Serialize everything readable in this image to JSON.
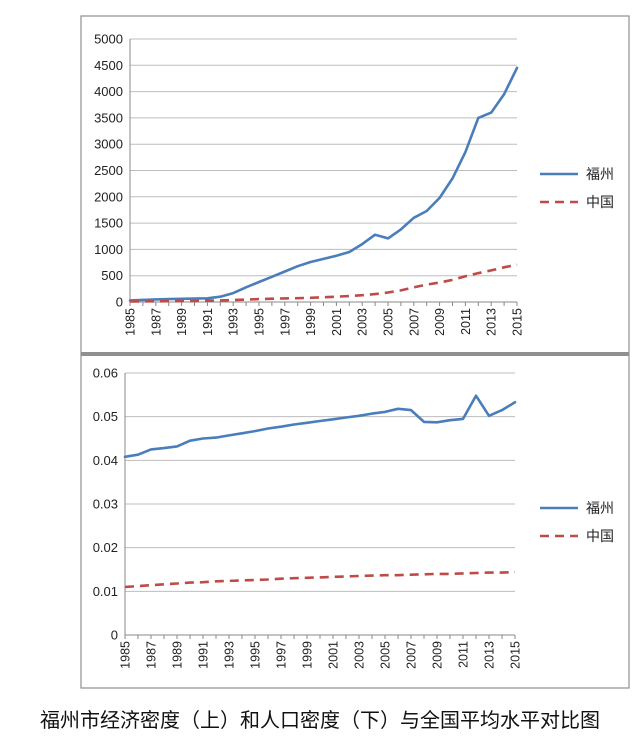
{
  "caption": "福州市经济密度（上）和人口密度（下）与全国平均水平对比图",
  "colors": {
    "fuzhou": "#4a7ebb",
    "china": "#be4b48"
  },
  "chart_data": [
    {
      "type": "line",
      "title": "",
      "xlabel": "",
      "ylabel": "",
      "ylim": [
        0,
        5000
      ],
      "yticks": [
        0,
        500,
        1000,
        1500,
        2000,
        2500,
        3000,
        3500,
        4000,
        4500,
        5000
      ],
      "x": [
        1985,
        1986,
        1987,
        1988,
        1989,
        1990,
        1991,
        1992,
        1993,
        1994,
        1995,
        1996,
        1997,
        1998,
        1999,
        2000,
        2001,
        2002,
        2003,
        2004,
        2005,
        2006,
        2007,
        2008,
        2009,
        2010,
        2011,
        2012,
        2013,
        2014,
        2015
      ],
      "xtick_labels": [
        "1985",
        "1987",
        "1989",
        "1991",
        "1993",
        "1995",
        "1997",
        "1999",
        "2001",
        "2003",
        "2005",
        "2007",
        "2009",
        "2011",
        "2013",
        "2015"
      ],
      "grid": "horizontal",
      "legend_position": "right",
      "series": [
        {
          "name": "福州",
          "style": "solid",
          "values": [
            30,
            40,
            50,
            55,
            60,
            65,
            70,
            100,
            170,
            280,
            380,
            480,
            580,
            680,
            760,
            820,
            880,
            950,
            1100,
            1280,
            1210,
            1380,
            1600,
            1730,
            1980,
            2350,
            2850,
            3500,
            3600,
            3950,
            4450
          ]
        },
        {
          "name": "中国",
          "style": "dashed",
          "values": [
            10,
            12,
            14,
            16,
            18,
            20,
            25,
            30,
            38,
            45,
            55,
            62,
            68,
            72,
            80,
            90,
            100,
            115,
            130,
            150,
            180,
            220,
            280,
            330,
            370,
            420,
            490,
            550,
            600,
            660,
            710
          ]
        }
      ]
    },
    {
      "type": "line",
      "title": "",
      "xlabel": "",
      "ylabel": "",
      "ylim": [
        0,
        0.06
      ],
      "yticks": [
        0,
        0.01,
        0.02,
        0.03,
        0.04,
        0.05,
        0.06
      ],
      "ytick_labels": [
        "0",
        "0.01",
        "0.02",
        "0.03",
        "0.04",
        "0.05",
        "0.06"
      ],
      "x": [
        1985,
        1986,
        1987,
        1988,
        1989,
        1990,
        1991,
        1992,
        1993,
        1994,
        1995,
        1996,
        1997,
        1998,
        1999,
        2000,
        2001,
        2002,
        2003,
        2004,
        2005,
        2006,
        2007,
        2008,
        2009,
        2010,
        2011,
        2012,
        2013,
        2014,
        2015
      ],
      "xtick_labels": [
        "1985",
        "1987",
        "1989",
        "1991",
        "1993",
        "1995",
        "1997",
        "1999",
        "2001",
        "2003",
        "2005",
        "2007",
        "2009",
        "2011",
        "2013",
        "2015"
      ],
      "grid": "horizontal",
      "legend_position": "right",
      "series": [
        {
          "name": "福州",
          "style": "solid",
          "values": [
            0.0408,
            0.0413,
            0.0425,
            0.0428,
            0.0432,
            0.0445,
            0.045,
            0.0452,
            0.0457,
            0.0462,
            0.0467,
            0.0473,
            0.0477,
            0.0482,
            0.0486,
            0.049,
            0.0494,
            0.0498,
            0.0502,
            0.0507,
            0.0511,
            0.0518,
            0.0515,
            0.0488,
            0.0487,
            0.0492,
            0.0495,
            0.0548,
            0.0502,
            0.0515,
            0.0533
          ]
        },
        {
          "name": "中国",
          "style": "dashed",
          "values": [
            0.011,
            0.0112,
            0.0114,
            0.0116,
            0.0118,
            0.012,
            0.0121,
            0.0123,
            0.0124,
            0.0125,
            0.0126,
            0.0127,
            0.0129,
            0.013,
            0.0131,
            0.0132,
            0.0133,
            0.0134,
            0.0135,
            0.0136,
            0.0137,
            0.0137,
            0.0138,
            0.0139,
            0.014,
            0.014,
            0.0141,
            0.0142,
            0.0143,
            0.0143,
            0.0144
          ]
        }
      ]
    }
  ]
}
